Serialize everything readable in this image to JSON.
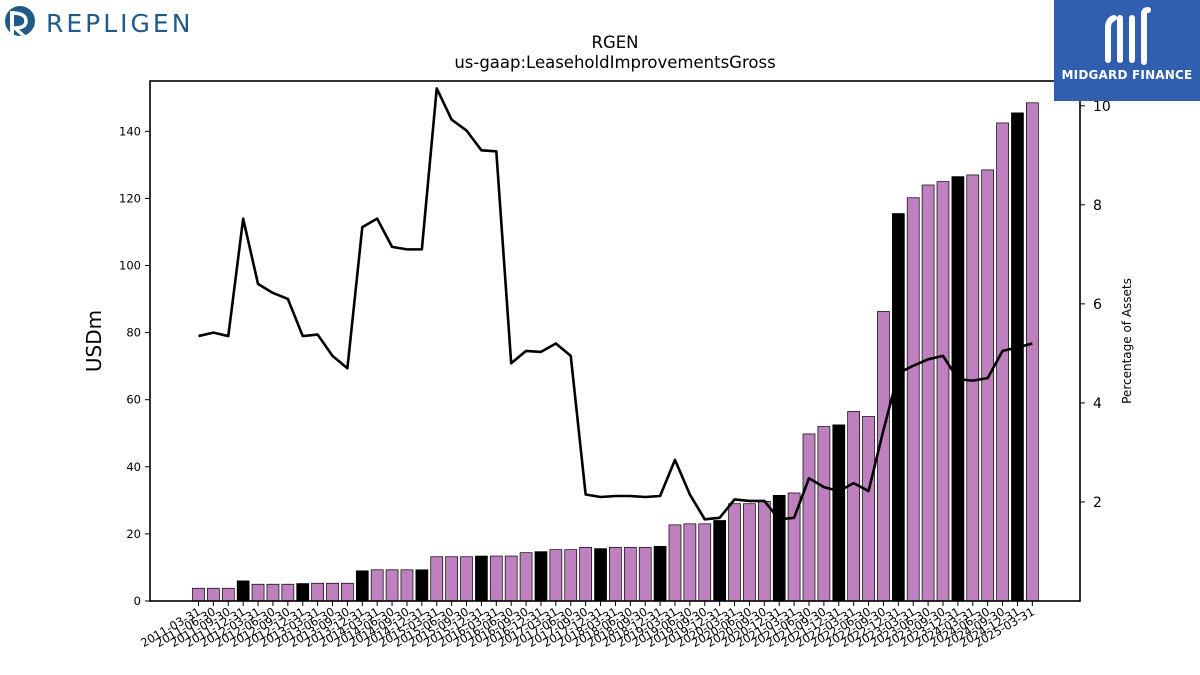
{
  "logos": {
    "left_brand": "REPLIGEN",
    "right_brand": "MIDGARD FINANCE"
  },
  "chart_data": {
    "type": "bar",
    "title": "RGEN",
    "subtitle": "us-gaap:LeaseholdImprovementsGross",
    "ylabel": "USDm",
    "y2label": "Percentage of Assets",
    "ylim": [
      0,
      155
    ],
    "y2lim": [
      0,
      10.5
    ],
    "yticks": [
      0,
      20,
      40,
      60,
      80,
      100,
      120,
      140
    ],
    "y2ticks": [
      2,
      4,
      6,
      8,
      10
    ],
    "colors": {
      "bar": "#bf80bf",
      "bar_annual": "#000000",
      "line": "#000000"
    },
    "categories": [
      "2011-03-31",
      "2011-06-30",
      "2011-09-30",
      "2011-12-31",
      "2012-03-31",
      "2012-06-30",
      "2012-09-30",
      "2012-12-31",
      "2013-03-31",
      "2013-06-30",
      "2013-09-30",
      "2013-12-31",
      "2014-03-31",
      "2014-06-30",
      "2014-09-30",
      "2014-12-31",
      "2015-03-31",
      "2015-06-30",
      "2015-09-30",
      "2015-12-31",
      "2016-03-31",
      "2016-06-30",
      "2016-09-30",
      "2016-12-31",
      "2017-03-31",
      "2017-06-30",
      "2017-09-30",
      "2017-12-31",
      "2018-03-31",
      "2018-06-30",
      "2018-09-30",
      "2018-12-31",
      "2019-03-31",
      "2019-06-30",
      "2019-09-30",
      "2019-12-31",
      "2020-03-31",
      "2020-06-30",
      "2020-09-30",
      "2020-12-31",
      "2021-03-31",
      "2021-06-30",
      "2021-09-30",
      "2021-12-31",
      "2022-03-31",
      "2022-06-30",
      "2022-09-30",
      "2022-12-31",
      "2023-03-31",
      "2023-06-30",
      "2023-09-30",
      "2023-12-31",
      "2024-03-31",
      "2024-06-30",
      "2024-09-30",
      "2024-12-31",
      "2025-03-31"
    ],
    "xtick_labels": [
      "2011-03-31",
      "2011-06-30",
      "2011-09-30",
      "2011-12-31",
      "2012-03-31",
      "2012-06-30",
      "2012-09-30",
      "2012-12-31",
      "2013-03-31",
      "2013-06-30",
      "2013-09-30",
      "2013-12-31",
      "2014-03-31",
      "2014-06-30",
      "2014-09-30",
      "2014-12-31",
      "2015-03-31",
      "2015-06-30",
      "2015-09-30",
      "2015-12-31",
      "2016-03-31",
      "2016-06-30",
      "2016-09-30",
      "2016-12-31",
      "2017-03-31",
      "2017-06-30",
      "2017-09-30",
      "2017-12-31",
      "2018-03-31",
      "2018-06-30",
      "2018-09-30",
      "2018-12-31",
      "2019-03-31",
      "2019-06-30",
      "2019-09-30",
      "2019-12-31",
      "2020-03-31",
      "2020-06-30",
      "2020-09-30",
      "2020-12-31",
      "2021-03-31",
      "2021-06-30",
      "2021-09-30",
      "2021-12-31",
      "2022-03-31",
      "2022-06-30",
      "2022-09-30",
      "2022-12-31",
      "2023-03-31",
      "2023-06-30",
      "2023-09-30",
      "2023-12-31",
      "2024-03-31",
      "2024-06-30",
      "2024-09-30",
      "2024-12-31",
      "2025-03-31"
    ],
    "bar_values": [
      3.8,
      3.8,
      3.8,
      6.0,
      5.0,
      5.0,
      5.0,
      5.2,
      5.3,
      5.3,
      5.3,
      9.0,
      9.3,
      9.3,
      9.3,
      9.3,
      13.2,
      13.2,
      13.2,
      13.4,
      13.4,
      13.4,
      14.4,
      14.7,
      15.3,
      15.3,
      16.0,
      15.6,
      16.0,
      16.0,
      16.0,
      16.3,
      22.7,
      23.0,
      23.0,
      24.0,
      29.0,
      29.0,
      29.7,
      31.5,
      32.2,
      49.8,
      52.0,
      52.5,
      56.5,
      55.0,
      86.3,
      115.5,
      120.2,
      124.0,
      125.0,
      126.5,
      127.0,
      128.5,
      142.5,
      145.5,
      148.5
    ],
    "annual_flags": [
      false,
      false,
      false,
      true,
      false,
      false,
      false,
      true,
      false,
      false,
      false,
      true,
      false,
      false,
      false,
      true,
      false,
      false,
      false,
      true,
      false,
      false,
      false,
      true,
      false,
      false,
      false,
      true,
      false,
      false,
      false,
      true,
      false,
      false,
      false,
      true,
      false,
      false,
      false,
      true,
      false,
      false,
      false,
      true,
      false,
      false,
      false,
      true,
      false,
      false,
      false,
      true,
      false,
      false,
      false,
      true,
      false
    ],
    "line_values": [
      5.35,
      5.42,
      5.35,
      7.72,
      6.4,
      6.22,
      6.1,
      5.35,
      5.38,
      4.95,
      4.7,
      7.55,
      7.72,
      7.15,
      7.1,
      7.1,
      10.35,
      9.72,
      9.5,
      9.1,
      9.08,
      4.8,
      5.05,
      5.03,
      5.2,
      4.95,
      2.15,
      2.1,
      2.12,
      2.12,
      2.1,
      2.12,
      2.85,
      2.15,
      1.65,
      1.68,
      2.05,
      2.02,
      2.02,
      1.65,
      1.68,
      2.48,
      2.3,
      2.22,
      2.38,
      2.22,
      3.45,
      4.6,
      4.75,
      4.88,
      4.95,
      4.48,
      4.45,
      4.5,
      5.05,
      5.12,
      5.2
    ]
  }
}
